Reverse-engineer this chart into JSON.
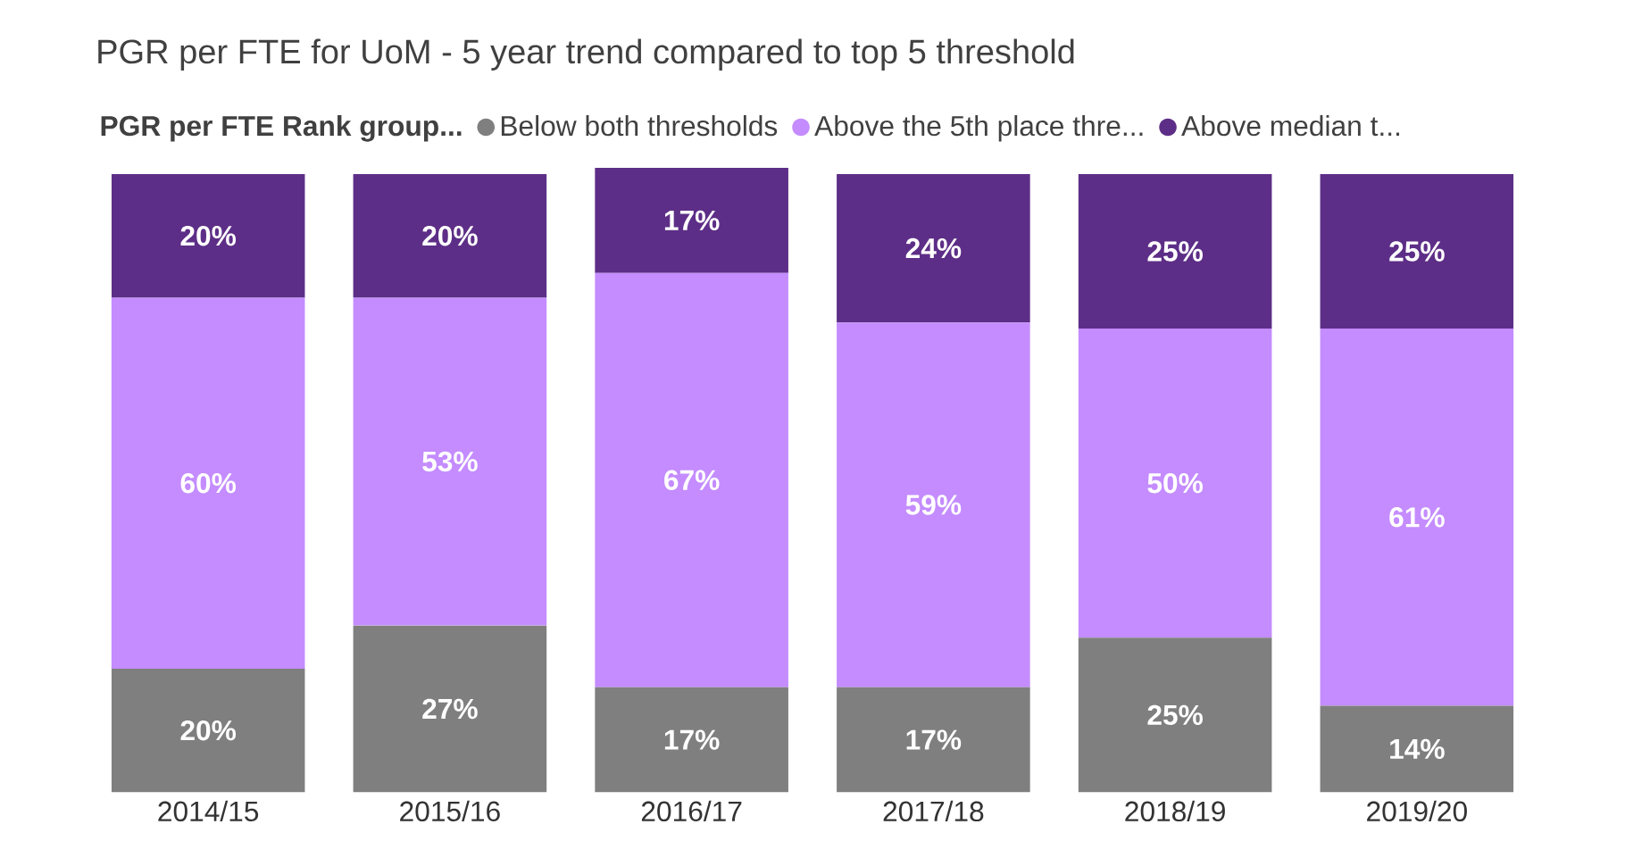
{
  "chart_data": {
    "type": "bar",
    "stacked": true,
    "title": "PGR per FTE for UoM - 5 year trend compared to top 5 threshold",
    "legend_title": "PGR per FTE Rank group...",
    "legend": "top",
    "categories": [
      "2014/15",
      "2015/16",
      "2016/17",
      "2017/18",
      "2018/19",
      "2019/20"
    ],
    "series": [
      {
        "name": "Below both thresholds",
        "color": "#7f7f7f",
        "values": [
          20,
          27,
          17,
          17,
          25,
          14
        ],
        "value_labels": [
          "20%",
          "27%",
          "17%",
          "17%",
          "25%",
          "14%"
        ]
      },
      {
        "name": "Above the 5th place thre...",
        "color": "#c48cff",
        "values": [
          60,
          53,
          67,
          59,
          50,
          61
        ],
        "value_labels": [
          "60%",
          "53%",
          "67%",
          "59%",
          "50%",
          "61%"
        ]
      },
      {
        "name": "Above median t...",
        "color": "#5d2e87",
        "values": [
          20,
          20,
          17,
          24,
          25,
          25
        ],
        "value_labels": [
          "20%",
          "20%",
          "17%",
          "24%",
          "25%",
          "25%"
        ]
      }
    ]
  }
}
